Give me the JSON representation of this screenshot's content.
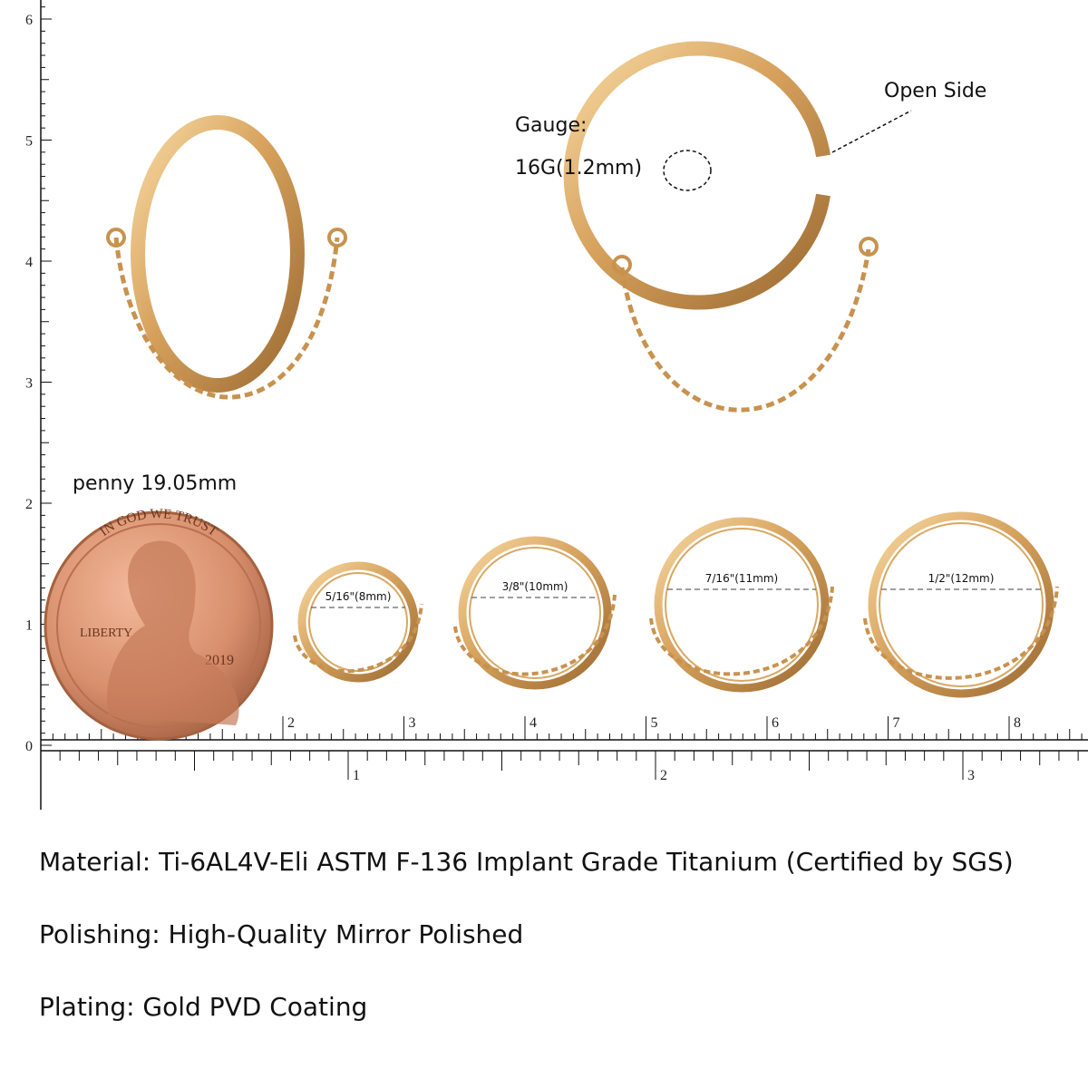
{
  "ruler": {
    "vertical_labels": [
      "0",
      "1",
      "2",
      "3",
      "4",
      "5",
      "6"
    ],
    "cm_labels": [
      "2",
      "3",
      "4",
      "5",
      "6",
      "7",
      "8"
    ],
    "inch_labels": [
      "1",
      "2",
      "3"
    ]
  },
  "callouts": {
    "gauge_label": "Gauge:",
    "gauge_value": "16G(1.2mm)",
    "open_side": "Open Side"
  },
  "penny": {
    "caption": "penny 19.05mm",
    "motto": "IN GOD WE TRUST",
    "liberty": "LIBERTY",
    "year": "2019"
  },
  "sizes": [
    "5/16\"(8mm)",
    "3/8\"(10mm)",
    "7/16\"(11mm)",
    "1/2\"(12mm)"
  ],
  "specs": [
    "Material: Ti-6AL4V-Eli ASTM F-136 Implant Grade Titanium (Certified by SGS)",
    "Polishing: High-Quality Mirror Polished",
    "Plating: Gold PVD Coating"
  ]
}
